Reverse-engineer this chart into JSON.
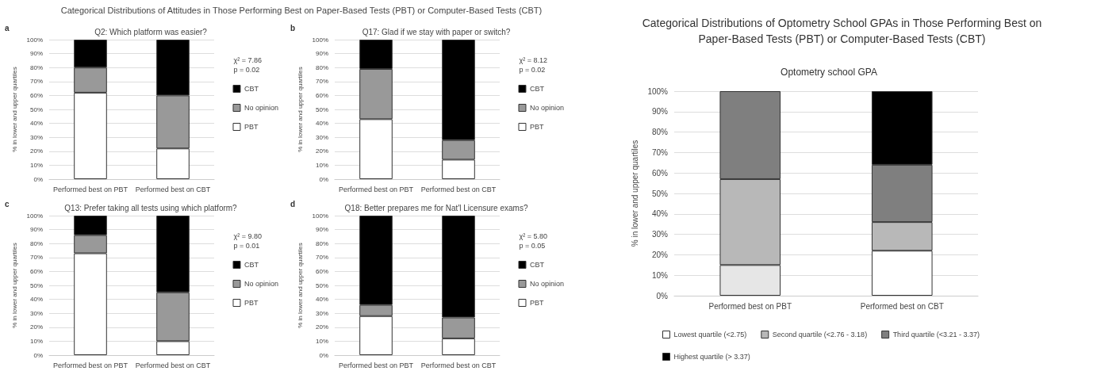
{
  "chart_data": [
    {
      "type": "bar",
      "title": "Categorical Distributions of Attitudes in Those Performing Best on Paper-Based Tests (PBT) or Computer-Based Tests (CBT)",
      "subtitle": "Q2: Which platform was easier?",
      "ylabel": "% in lower and upper quartiles",
      "categories": [
        "Performed best on PBT",
        "Performed best on CBT"
      ],
      "stacked": true,
      "series": [
        {
          "name": "PBT",
          "color": "#ffffff",
          "values": [
            62,
            22
          ]
        },
        {
          "name": "No opinion",
          "color": "#999999",
          "values": [
            18,
            38
          ]
        },
        {
          "name": "CBT",
          "color": "#000000",
          "values": [
            20,
            40
          ]
        }
      ],
      "ylim": [
        0,
        100
      ],
      "yticks": [
        {
          "value": 0,
          "label": "0%"
        },
        {
          "value": 10,
          "label": "10%"
        },
        {
          "value": 20,
          "label": "20%"
        },
        {
          "value": 30,
          "label": "30%"
        },
        {
          "value": 40,
          "label": "40%"
        },
        {
          "value": 50,
          "label": "50%"
        },
        {
          "value": 60,
          "label": "60%"
        },
        {
          "value": 70,
          "label": "70%"
        },
        {
          "value": 80,
          "label": "80%"
        },
        {
          "value": 90,
          "label": "90%"
        },
        {
          "value": 100,
          "label": "100%"
        }
      ],
      "grid": "y",
      "legend": "right",
      "annotations": [
        "a",
        "χ² = 7.86\np = 0.02"
      ]
    },
    {
      "type": "bar",
      "title": "Q17: Glad if we stay with paper or switch?",
      "ylabel": "% in lower and upper quartiles",
      "categories": [
        "Performed best on PBT",
        "Performed best on CBT"
      ],
      "stacked": true,
      "series": [
        {
          "name": "PBT",
          "color": "#ffffff",
          "values": [
            43,
            14
          ]
        },
        {
          "name": "No opinion",
          "color": "#999999",
          "values": [
            36,
            14
          ]
        },
        {
          "name": "CBT",
          "color": "#000000",
          "values": [
            21,
            72
          ]
        }
      ],
      "ylim": [
        0,
        100
      ],
      "yticks": [
        {
          "value": 0,
          "label": "0%"
        },
        {
          "value": 10,
          "label": "10%"
        },
        {
          "value": 20,
          "label": "20%"
        },
        {
          "value": 30,
          "label": "30%"
        },
        {
          "value": 40,
          "label": "40%"
        },
        {
          "value": 50,
          "label": "50%"
        },
        {
          "value": 60,
          "label": "60%"
        },
        {
          "value": 70,
          "label": "70%"
        },
        {
          "value": 80,
          "label": "80%"
        },
        {
          "value": 90,
          "label": "90%"
        },
        {
          "value": 100,
          "label": "100%"
        }
      ],
      "grid": "y",
      "legend": "right",
      "annotations": [
        "b",
        "χ² = 8.12\np = 0.02"
      ]
    },
    {
      "type": "bar",
      "title": "Q13: Prefer taking all tests using which platform?",
      "ylabel": "% in lower and upper quartiles",
      "categories": [
        "Performed best on PBT",
        "Performed best on CBT"
      ],
      "stacked": true,
      "series": [
        {
          "name": "PBT",
          "color": "#ffffff",
          "values": [
            73,
            10
          ]
        },
        {
          "name": "No opinion",
          "color": "#999999",
          "values": [
            13,
            35
          ]
        },
        {
          "name": "CBT",
          "color": "#000000",
          "values": [
            14,
            55
          ]
        }
      ],
      "ylim": [
        0,
        100
      ],
      "yticks": [
        {
          "value": 0,
          "label": "0%"
        },
        {
          "value": 10,
          "label": "10%"
        },
        {
          "value": 20,
          "label": "20%"
        },
        {
          "value": 30,
          "label": "30%"
        },
        {
          "value": 40,
          "label": "40%"
        },
        {
          "value": 50,
          "label": "50%"
        },
        {
          "value": 60,
          "label": "60%"
        },
        {
          "value": 70,
          "label": "70%"
        },
        {
          "value": 80,
          "label": "80%"
        },
        {
          "value": 90,
          "label": "90%"
        },
        {
          "value": 100,
          "label": "100%"
        }
      ],
      "grid": "y",
      "legend": "right",
      "annotations": [
        "c",
        "χ² = 9.80\np = 0.01"
      ]
    },
    {
      "type": "bar",
      "title": "Q18: Better prepares me for Nat'l Licensure exams?",
      "ylabel": "% in lower and upper quartiles",
      "categories": [
        "Performed best on PBT",
        "Performed best on CBT"
      ],
      "stacked": true,
      "series": [
        {
          "name": "PBT",
          "color": "#ffffff",
          "values": [
            28,
            12
          ]
        },
        {
          "name": "No opinion",
          "color": "#999999",
          "values": [
            8,
            15
          ]
        },
        {
          "name": "CBT",
          "color": "#000000",
          "values": [
            64,
            73
          ]
        }
      ],
      "ylim": [
        0,
        100
      ],
      "yticks": [
        {
          "value": 0,
          "label": "0%"
        },
        {
          "value": 10,
          "label": "10%"
        },
        {
          "value": 20,
          "label": "20%"
        },
        {
          "value": 30,
          "label": "30%"
        },
        {
          "value": 40,
          "label": "40%"
        },
        {
          "value": 50,
          "label": "50%"
        },
        {
          "value": 60,
          "label": "60%"
        },
        {
          "value": 70,
          "label": "70%"
        },
        {
          "value": 80,
          "label": "80%"
        },
        {
          "value": 90,
          "label": "90%"
        },
        {
          "value": 100,
          "label": "100%"
        }
      ],
      "grid": "y",
      "legend": "right",
      "annotations": [
        "d",
        "χ² = 5.80\np = 0.05"
      ]
    },
    {
      "type": "bar",
      "title": "Categorical Distributions of Optometry School GPAs in Those Performing Best on\nPaper-Based Tests (PBT) or Computer-Based Tests (CBT)",
      "subtitle": "Optometry school GPA",
      "ylabel": "% in lower and upper quartiles",
      "categories": [
        "Performed best on PBT",
        "Performed best on CBT"
      ],
      "stacked": true,
      "series": [
        {
          "name": "Lowest quartile (<2.75)",
          "colors": [
            "#e6e6e6",
            "#ffffff"
          ],
          "color": "#ffffff",
          "values": [
            15,
            22
          ]
        },
        {
          "name": "Second quartile (<2.76 - 3.18)",
          "color": "#b8b8b8",
          "values": [
            42,
            14
          ]
        },
        {
          "name": "Third quartile (<3.21 - 3.37)",
          "color": "#7f7f7f",
          "values": [
            43,
            28
          ]
        },
        {
          "name": "Highest quartile (> 3.37)",
          "color": "#000000",
          "values": [
            null,
            36
          ]
        }
      ],
      "ylim": [
        0,
        100
      ],
      "yticks": [
        {
          "value": 0,
          "label": "0%"
        },
        {
          "value": 10,
          "label": "10%"
        },
        {
          "value": 20,
          "label": "20%"
        },
        {
          "value": 30,
          "label": "30%"
        },
        {
          "value": 40,
          "label": "40%"
        },
        {
          "value": 50,
          "label": "50%"
        },
        {
          "value": 60,
          "label": "60%"
        },
        {
          "value": 70,
          "label": "70%"
        },
        {
          "value": 80,
          "label": "80%"
        },
        {
          "value": 90,
          "label": "90%"
        },
        {
          "value": 100,
          "label": "100%"
        }
      ],
      "grid": "y",
      "legend": "bottom"
    }
  ]
}
